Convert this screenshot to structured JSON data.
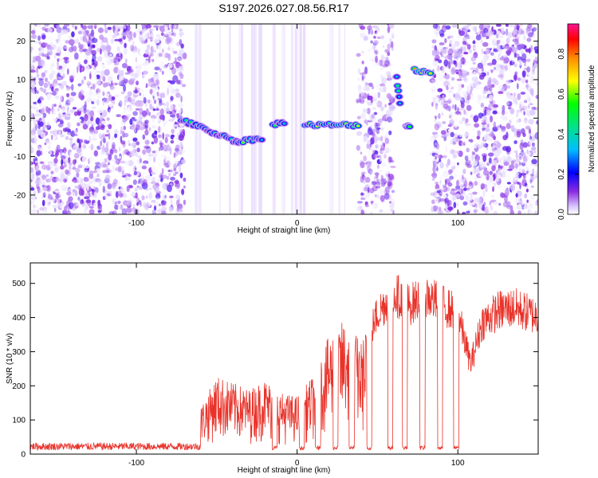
{
  "title": "S197.2026.027.08.56.R17",
  "chart_data": [
    {
      "type": "heatmap",
      "xlabel": "Height of straight line (km)",
      "ylabel": "Frequency (Hz)",
      "xlim": [
        -166,
        150
      ],
      "ylim": [
        -25,
        24.5
      ],
      "x_ticks": [
        -100,
        0,
        100
      ],
      "y_ticks": [
        -20,
        -10,
        0,
        10,
        20
      ],
      "colorbar": {
        "label": "Normalized spectral amplitude",
        "range": [
          0,
          0.95
        ],
        "ticks": [
          0,
          0.2,
          0.4,
          0.6,
          0.8
        ]
      },
      "noise_regions": [
        {
          "x0": -166,
          "x1": -70,
          "density": 1.0
        },
        {
          "x0": 38,
          "x1": 60,
          "density": 0.9
        },
        {
          "x0": 84,
          "x1": 150,
          "density": 1.0
        }
      ],
      "features": [
        {
          "x0": -72,
          "x1": -38,
          "y0": -0.5,
          "y1": -6.0,
          "amp": 0.5
        },
        {
          "x0": -38,
          "x1": -22,
          "y0": -6.2,
          "y1": -5.2,
          "amp": 0.6
        },
        {
          "x0": -15,
          "x1": -8,
          "y0": -1.5,
          "y1": -1.2,
          "amp": 0.55
        },
        {
          "x0": 5,
          "x1": 38,
          "y0": -1.8,
          "y1": -1.8,
          "amp": 0.75
        },
        {
          "x0": 62,
          "x1": 64,
          "y0": 10.5,
          "y1": 4.0,
          "amp": 0.5
        },
        {
          "x0": 68,
          "x1": 70,
          "y0": -2.0,
          "y1": -2.0,
          "amp": 0.55
        },
        {
          "x0": 73,
          "x1": 83,
          "y0": 12.5,
          "y1": 12.0,
          "amp": 0.85
        }
      ]
    },
    {
      "type": "line",
      "xlabel": "Height of straight line (km)",
      "ylabel": "SNR (10 * v/v)",
      "xlim": [
        -166,
        150
      ],
      "ylim": [
        0,
        560
      ],
      "x_ticks": [
        -100,
        0,
        100
      ],
      "y_ticks": [
        0,
        100,
        200,
        300,
        400,
        500
      ],
      "series": [
        {
          "color": "#e8332a",
          "baseline": [
            [
              -166,
              18
            ],
            [
              -70,
              20
            ],
            [
              -60,
              20
            ]
          ],
          "envelope_x": [
            -60,
            -50,
            -40,
            -30,
            -20,
            -10,
            0,
            10,
            20,
            30,
            40,
            50,
            60,
            70,
            80,
            90,
            100,
            108,
            115,
            125,
            135,
            150
          ],
          "envelope_y": [
            140,
            230,
            210,
            190,
            220,
            180,
            170,
            230,
            350,
            400,
            330,
            470,
            540,
            500,
            530,
            500,
            470,
            300,
            440,
            480,
            490,
            460
          ],
          "dropouts_x": [
            -14,
            3,
            13,
            24,
            34,
            45,
            58,
            67,
            78,
            89,
            99
          ]
        }
      ]
    }
  ]
}
